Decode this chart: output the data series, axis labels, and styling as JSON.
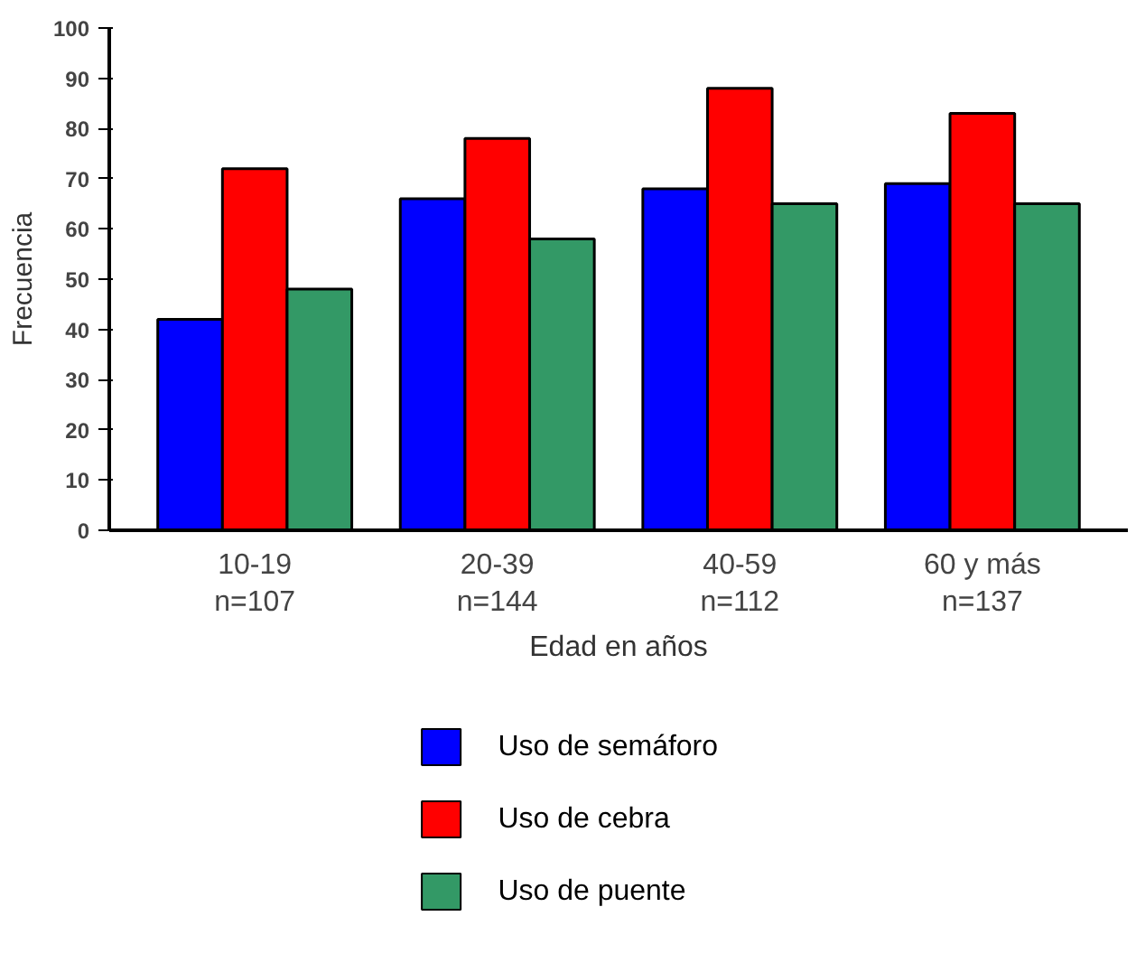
{
  "chart_data": {
    "type": "bar",
    "xlabel": "Edad en años",
    "ylabel": "Frecuencia",
    "categories": [
      "10-19\nn=107",
      "20-39\nn=144",
      "40-59\nn=112",
      "60 y más\nn=137"
    ],
    "series": [
      {
        "name": "Uso de semáforo",
        "color": "#0000ff",
        "values": [
          42,
          66,
          68,
          69
        ]
      },
      {
        "name": "Uso de cebra",
        "color": "#ff0000",
        "values": [
          72,
          78,
          88,
          83
        ]
      },
      {
        "name": "Uso de puente",
        "color": "#339966",
        "values": [
          48,
          58,
          65,
          65
        ]
      }
    ],
    "ylim": [
      0,
      100
    ],
    "yticks": [
      0,
      10,
      20,
      30,
      40,
      50,
      60,
      70,
      80,
      90,
      100
    ],
    "grid": false,
    "legend": "bottom"
  }
}
